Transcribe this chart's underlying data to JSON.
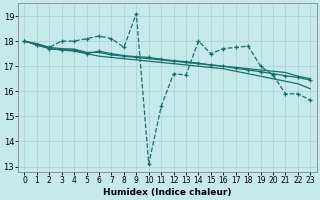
{
  "xlabel": "Humidex (Indice chaleur)",
  "ylabel": "",
  "background_color": "#c6eaea",
  "grid_color": "#b0d8d8",
  "line_color": "#1a6e6a",
  "xlim": [
    -0.5,
    23.5
  ],
  "ylim": [
    12.8,
    19.5
  ],
  "yticks": [
    13,
    14,
    15,
    16,
    17,
    18,
    19
  ],
  "xticks": [
    0,
    1,
    2,
    3,
    4,
    5,
    6,
    7,
    8,
    9,
    10,
    11,
    12,
    13,
    14,
    15,
    16,
    17,
    18,
    19,
    20,
    21,
    22,
    23
  ],
  "s1_x": [
    0,
    1,
    2,
    3,
    4,
    5,
    6,
    7,
    8,
    9,
    10,
    11,
    12,
    13,
    14,
    15,
    16,
    17,
    18,
    19,
    20,
    21,
    22,
    23
  ],
  "s1_y": [
    18.0,
    17.85,
    17.75,
    18.0,
    18.0,
    18.1,
    18.2,
    18.1,
    17.75,
    19.1,
    13.1,
    15.4,
    16.7,
    16.65,
    18.0,
    17.5,
    17.7,
    17.75,
    17.8,
    17.0,
    16.65,
    15.9,
    15.9,
    15.65
  ],
  "s2_x": [
    0,
    2,
    3,
    4,
    5,
    6,
    7,
    8,
    9,
    10,
    11,
    12,
    13,
    14,
    15,
    16,
    17,
    18,
    19,
    20,
    21,
    22,
    23
  ],
  "s2_y": [
    18.0,
    17.7,
    17.65,
    17.6,
    17.5,
    17.4,
    17.35,
    17.3,
    17.25,
    17.2,
    17.15,
    17.1,
    17.05,
    17.0,
    16.95,
    16.9,
    16.8,
    16.7,
    16.6,
    16.5,
    16.4,
    16.3,
    16.1
  ],
  "s3_x": [
    0,
    1,
    2,
    3,
    4,
    5,
    6,
    7,
    8,
    9,
    10,
    11,
    12,
    13,
    14,
    15,
    16,
    17,
    18,
    19,
    20,
    21,
    22,
    23
  ],
  "s3_y": [
    18.0,
    17.9,
    17.75,
    17.7,
    17.68,
    17.55,
    17.55,
    17.45,
    17.4,
    17.35,
    17.3,
    17.25,
    17.2,
    17.15,
    17.1,
    17.05,
    17.0,
    16.95,
    16.9,
    16.85,
    16.8,
    16.75,
    16.6,
    16.5
  ],
  "s4_x": [
    0,
    1,
    2,
    3,
    4,
    5,
    6,
    7,
    8,
    9,
    10,
    11,
    12,
    13,
    14,
    15,
    16,
    17,
    18,
    19,
    20,
    21,
    22,
    23
  ],
  "s4_y": [
    18.0,
    17.85,
    17.7,
    17.65,
    17.65,
    17.5,
    17.6,
    17.5,
    17.42,
    17.38,
    17.35,
    17.28,
    17.22,
    17.18,
    17.12,
    17.05,
    17.0,
    16.92,
    16.85,
    16.78,
    16.7,
    16.62,
    16.55,
    16.45
  ]
}
